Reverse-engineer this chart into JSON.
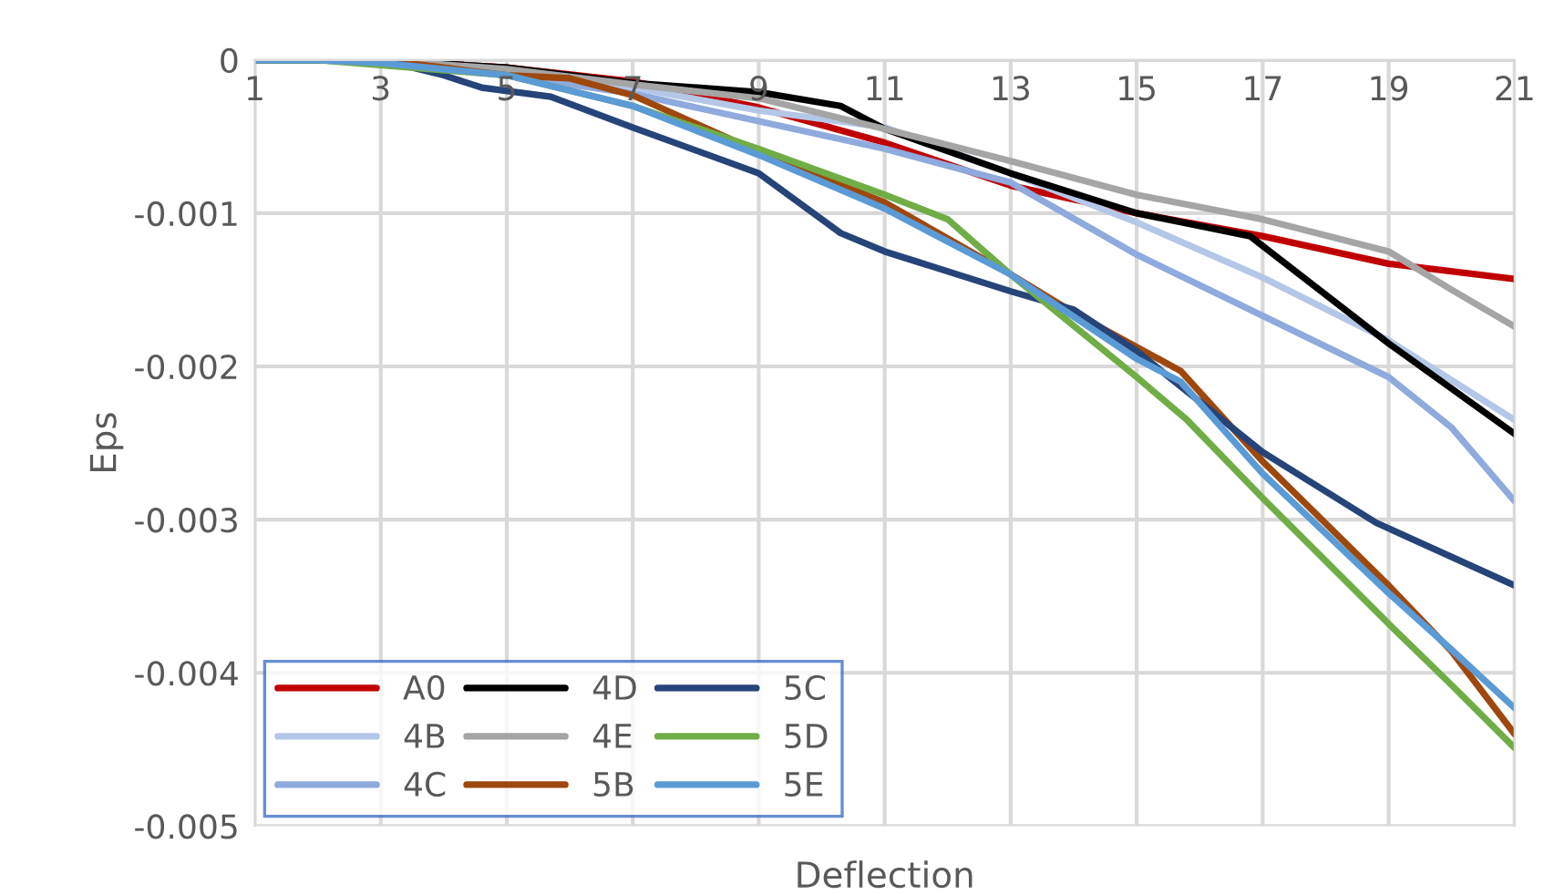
{
  "chart_data": {
    "type": "line",
    "xlabel": "Deflection",
    "ylabel": "Eps",
    "xlim": [
      1,
      21
    ],
    "xticks": [
      1,
      3,
      5,
      7,
      9,
      11,
      13,
      15,
      17,
      19,
      21
    ],
    "ylim": [
      -0.005,
      0
    ],
    "yticks": [
      {
        "value": -0.005,
        "label": "-0.005"
      },
      {
        "value": -0.004,
        "label": "-0.004"
      },
      {
        "value": -0.003,
        "label": "-0.003"
      },
      {
        "value": -0.002,
        "label": "-0.002"
      },
      {
        "value": -0.001,
        "label": "-0.001"
      },
      0
    ],
    "grid": true,
    "legend": "bottom left",
    "marker": "none",
    "line_style": "solid",
    "series": [
      {
        "name": "A0",
        "color": "#c00000",
        "x": [
          3,
          5,
          7,
          9,
          11,
          13,
          15,
          17,
          19,
          21
        ],
        "values": [
          0,
          -5e-05,
          -0.00014,
          -0.00031,
          -0.00054,
          -0.00082,
          -0.001,
          -0.00115,
          -0.00133,
          -0.00143
        ]
      },
      {
        "name": "4B",
        "color": "#b4c7e7",
        "x": [
          1,
          2,
          3,
          5,
          7,
          9,
          11,
          13,
          15,
          17,
          19,
          21
        ],
        "values": [
          0,
          0,
          0,
          -8e-05,
          -0.00018,
          -0.00033,
          -0.00044,
          -0.00074,
          -0.00106,
          -0.00142,
          -0.00183,
          -0.00235
        ]
      },
      {
        "name": "4C",
        "color": "#8faadc",
        "x": [
          1,
          2,
          3,
          5,
          7,
          9,
          11,
          13,
          15,
          17,
          19,
          20,
          21
        ],
        "values": [
          0,
          0,
          0,
          -0.0001,
          -0.00022,
          -0.0004,
          -0.00058,
          -0.0008,
          -0.00127,
          -0.00167,
          -0.00207,
          -0.0024,
          -0.00288
        ]
      },
      {
        "name": "4D",
        "color": "#000000",
        "x": [
          1,
          2,
          3,
          5,
          7,
          9,
          10.3,
          11,
          13,
          15,
          16.8,
          19,
          21
        ],
        "values": [
          0,
          0,
          0,
          -5e-05,
          -0.00015,
          -0.00021,
          -0.0003,
          -0.00045,
          -0.00074,
          -0.001,
          -0.00115,
          -0.00185,
          -0.00244
        ]
      },
      {
        "name": "4E",
        "color": "#a5a5a5",
        "x": [
          1,
          2,
          3,
          5,
          7,
          9,
          11,
          13,
          15,
          17,
          19,
          20,
          21
        ],
        "values": [
          0,
          0,
          0,
          -6e-05,
          -0.00016,
          -0.00025,
          -0.00045,
          -0.00066,
          -0.00088,
          -0.00104,
          -0.00125,
          -0.0015,
          -0.00174
        ]
      },
      {
        "name": "5B",
        "color": "#9e480e",
        "x": [
          1,
          2,
          3,
          4,
          5,
          6,
          7,
          9,
          11,
          13,
          14,
          15.7,
          17,
          19,
          20,
          21
        ],
        "values": [
          0,
          0,
          0,
          -5e-05,
          -0.0001,
          -0.00012,
          -0.00023,
          -0.0006,
          -0.00093,
          -0.0014,
          -0.00165,
          -0.00203,
          -0.00262,
          -0.00343,
          -0.00386,
          -0.0044
        ]
      },
      {
        "name": "5C",
        "color": "#264478",
        "x": [
          1,
          2,
          3,
          4,
          4.6,
          5.7,
          7,
          9,
          10.3,
          11,
          13,
          14,
          15,
          17,
          18.8,
          21
        ],
        "values": [
          0,
          0,
          0,
          -0.0001,
          -0.00018,
          -0.00024,
          -0.00044,
          -0.00074,
          -0.00113,
          -0.00125,
          -0.00151,
          -0.00163,
          -0.0019,
          -0.00256,
          -0.00302,
          -0.00343
        ]
      },
      {
        "name": "5D",
        "color": "#70ad47",
        "x": [
          1,
          2,
          5,
          7,
          9,
          11,
          12,
          13,
          15,
          15.8,
          17,
          19,
          20,
          21
        ],
        "values": [
          0,
          0,
          -0.0001,
          -0.0003,
          -0.00058,
          -0.00088,
          -0.00104,
          -0.0014,
          -0.00207,
          -0.00235,
          -0.00286,
          -0.00368,
          -0.00408,
          -0.00449
        ]
      },
      {
        "name": "5E",
        "color": "#5b9bd5",
        "x": [
          1,
          2,
          3,
          5,
          7,
          9,
          11,
          13,
          15,
          15.7,
          17,
          19,
          20,
          21
        ],
        "values": [
          0,
          0,
          -2e-05,
          -0.0001,
          -0.0003,
          -0.00062,
          -0.00097,
          -0.0014,
          -0.00195,
          -0.0021,
          -0.0027,
          -0.00348,
          -0.00385,
          -0.00423
        ]
      }
    ]
  }
}
